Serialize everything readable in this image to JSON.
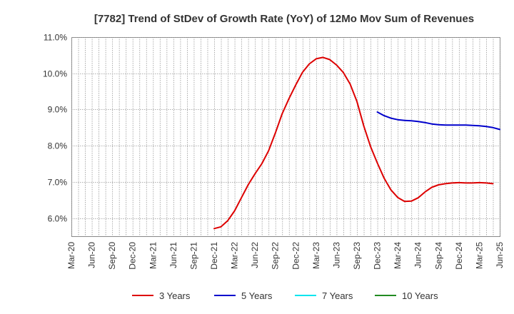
{
  "chart_data": {
    "type": "line",
    "title": "[7782]  Trend of StDev of Growth Rate (YoY) of 12Mo Mov Sum of Revenues",
    "xlabel": "",
    "ylabel": "",
    "ylim": [
      5.5,
      11.0
    ],
    "yticks": [
      6.0,
      7.0,
      8.0,
      9.0,
      10.0,
      11.0
    ],
    "ytick_labels": [
      "6.0%",
      "7.0%",
      "8.0%",
      "9.0%",
      "10.0%",
      "11.0%"
    ],
    "xtick_labels": [
      "Mar-20",
      "Jun-20",
      "Sep-20",
      "Dec-20",
      "Mar-21",
      "Jun-21",
      "Sep-21",
      "Dec-21",
      "Mar-22",
      "Jun-22",
      "Sep-22",
      "Dec-22",
      "Mar-23",
      "Jun-23",
      "Sep-23",
      "Dec-23",
      "Mar-24",
      "Jun-24",
      "Sep-24",
      "Dec-24",
      "Mar-25",
      "Jun-25"
    ],
    "x_start": "Mar-20",
    "grid": true,
    "legend_position": "bottom",
    "series": [
      {
        "name": "3 Years",
        "color": "#dd0000",
        "start_index": 21,
        "values": [
          5.71,
          5.76,
          5.93,
          6.2,
          6.56,
          6.92,
          7.22,
          7.5,
          7.86,
          8.35,
          8.88,
          9.3,
          9.68,
          10.03,
          10.26,
          10.4,
          10.44,
          10.38,
          10.23,
          10.02,
          9.7,
          9.22,
          8.55,
          7.98,
          7.52,
          7.1,
          6.78,
          6.57,
          6.46,
          6.47,
          6.56,
          6.72,
          6.85,
          6.92,
          6.95,
          6.97,
          6.98,
          6.97,
          6.97,
          6.98,
          6.97,
          6.95
        ]
      },
      {
        "name": "5 Years",
        "color": "#0000cc",
        "start_index": 45,
        "values": [
          8.93,
          8.83,
          8.76,
          8.72,
          8.7,
          8.69,
          8.67,
          8.64,
          8.6,
          8.58,
          8.57,
          8.57,
          8.57,
          8.57,
          8.56,
          8.55,
          8.53,
          8.5,
          8.45
        ]
      },
      {
        "name": "7 Years",
        "color": "#00e5ee",
        "start_index": 0,
        "values": []
      },
      {
        "name": "10 Years",
        "color": "#228B22",
        "start_index": 0,
        "values": []
      }
    ]
  },
  "legend": {
    "items": [
      "3 Years",
      "5 Years",
      "7 Years",
      "10 Years"
    ]
  }
}
